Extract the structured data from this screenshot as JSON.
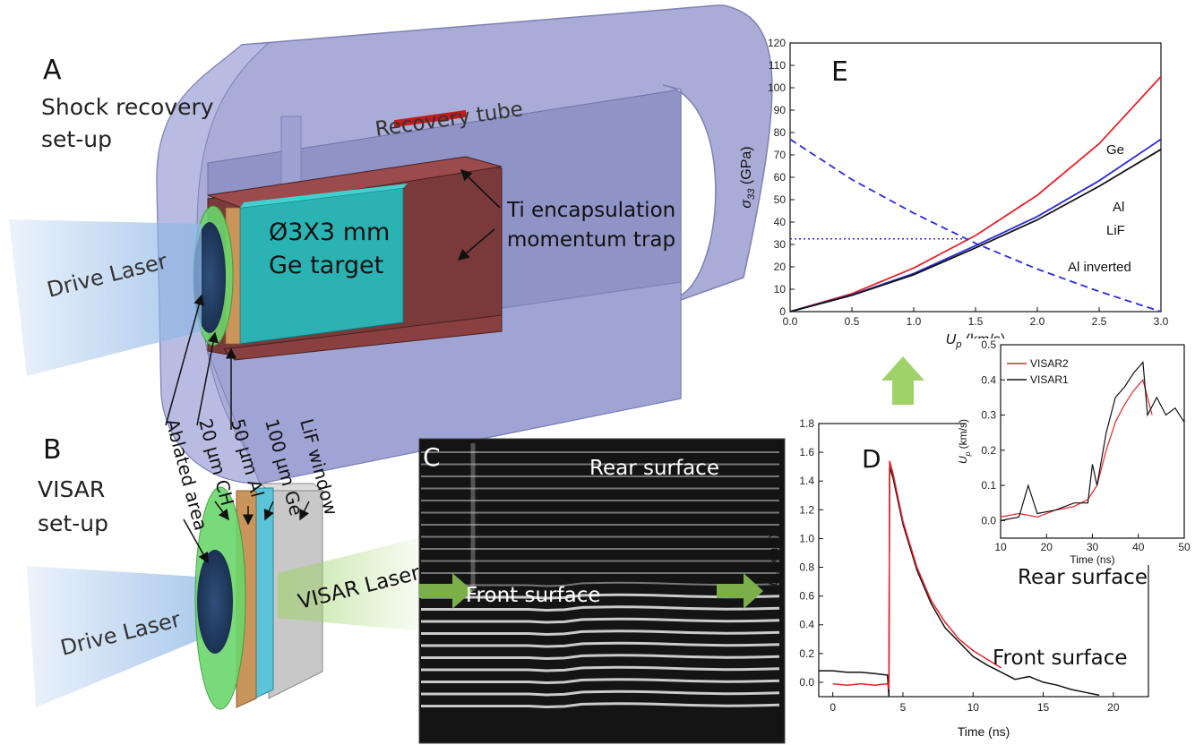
{
  "panels": {
    "A": {
      "letter": "A",
      "title_line1": "Shock recovery",
      "title_line2": "set-up",
      "recovery_tube": "Recovery tube",
      "encapsulation_line1": "Ti encapsulation",
      "encapsulation_line2": "momentum trap",
      "target_line1": "Ø3X3 mm",
      "target_line2": "Ge target",
      "drive_laser": "Drive Laser"
    },
    "B": {
      "letter": "B",
      "title_line1": "VISAR",
      "title_line2": "set-up",
      "drive_laser": "Drive Laser",
      "visar_laser": "VISAR Laser",
      "layers": [
        "Ablated area",
        "20 µm CH",
        "50 µm Al",
        "100 µm Ge",
        "LiF window"
      ]
    },
    "C": {
      "letter": "C",
      "rear_surface": "Rear surface",
      "front_surface": "Front surface"
    },
    "D": {
      "letter": "D",
      "rear_surface": "Rear surface",
      "front_surface": "Front surface"
    },
    "E": {
      "letter": "E"
    }
  },
  "colors": {
    "tube": "#a9acd6",
    "tube_dark": "#8b8fc2",
    "copper": "#7a3a3a",
    "ge_target": "#2bb3b3",
    "laser_blue": "#8fb7e6",
    "laser_green": "#9fd36a",
    "ch_green": "#6bd66b",
    "al_tan": "#c9955a",
    "lif_gray": "#c8c8c8",
    "red": "#e8232a",
    "blue": "#2a2ae0",
    "black": "#111111"
  },
  "chart_data": [
    {
      "id": "E",
      "type": "line",
      "xlabel": "U_p (km/s)",
      "xlabel_main": "U",
      "xlabel_sub": "p",
      "xlabel_unit": " (km/s)",
      "ylabel": "σ33 (GPa)",
      "ylabel_main": "σ",
      "ylabel_sub": "33",
      "ylabel_unit": " (GPa)",
      "xlim": [
        0,
        3.0
      ],
      "ylim": [
        0,
        120
      ],
      "xticks": [
        "0.0",
        "0.5",
        "1.0",
        "1.5",
        "2.0",
        "2.5",
        "3.0"
      ],
      "yticks": [
        "0",
        "10",
        "20",
        "30",
        "40",
        "50",
        "60",
        "70",
        "80",
        "90",
        "100",
        "110",
        "120"
      ],
      "series": [
        {
          "name": "Ge",
          "color": "#e8232a",
          "style": "solid",
          "x": [
            0,
            0.5,
            1.0,
            1.5,
            2.0,
            2.5,
            3.0
          ],
          "y": [
            0,
            8,
            19.5,
            34,
            52,
            75,
            105
          ]
        },
        {
          "name": "Al",
          "color": "#2a2ae0",
          "style": "solid",
          "x": [
            0,
            0.5,
            1.0,
            1.5,
            2.0,
            2.5,
            3.0
          ],
          "y": [
            0,
            7.5,
            17,
            29.5,
            42.5,
            58.5,
            77
          ]
        },
        {
          "name": "LiF",
          "color": "#111111",
          "style": "solid",
          "x": [
            0,
            0.5,
            1.0,
            1.5,
            2.0,
            2.5,
            3.0
          ],
          "y": [
            0,
            7.3,
            16.5,
            28.5,
            41,
            56,
            72.5
          ]
        },
        {
          "name": "Al inverted",
          "color": "#2a2ae0",
          "style": "dashed",
          "x": [
            0,
            0.5,
            1.0,
            1.5,
            2.0,
            2.5,
            3.0
          ],
          "y": [
            77,
            59,
            44,
            30.5,
            19,
            9,
            0
          ]
        }
      ],
      "reference_line": {
        "y": 32.5,
        "x_end": 1.4
      }
    },
    {
      "id": "D",
      "type": "line",
      "xlabel": "Time (ns)",
      "ylabel": "Up (km/s)",
      "ylabel_main": "U",
      "ylabel_sub": "p",
      "ylabel_unit": " (km/s)",
      "xlim": [
        -1,
        22.5
      ],
      "ylim": [
        -0.1,
        1.8
      ],
      "xticks": [
        "0",
        "5",
        "10",
        "15",
        "20"
      ],
      "yticks": [
        "0.0",
        "0.2",
        "0.4",
        "0.6",
        "0.8",
        "1.0",
        "1.2",
        "1.4",
        "1.6",
        "1.8"
      ],
      "series": [
        {
          "name": "black",
          "color": "#111111",
          "x": [
            -1,
            0,
            1,
            2,
            3,
            3.9,
            4.0,
            4.05,
            4.3,
            5,
            6,
            7,
            8,
            9,
            10,
            11,
            12,
            13,
            14,
            15,
            16,
            17,
            18,
            19
          ],
          "y": [
            0.08,
            0.08,
            0.07,
            0.07,
            0.06,
            0.05,
            -0.1,
            1.5,
            1.42,
            1.1,
            0.78,
            0.55,
            0.38,
            0.28,
            0.18,
            0.12,
            0.07,
            0.02,
            0.04,
            0.0,
            -0.02,
            -0.05,
            -0.07,
            -0.09
          ]
        },
        {
          "name": "red",
          "color": "#e8232a",
          "x": [
            0,
            1,
            2,
            3,
            3.9,
            4.0,
            4.05,
            4.3,
            5,
            6,
            7,
            8,
            9,
            10,
            11,
            12
          ],
          "y": [
            -0.01,
            -0.02,
            -0.01,
            -0.02,
            -0.01,
            -0.05,
            1.54,
            1.45,
            1.12,
            0.8,
            0.57,
            0.42,
            0.3,
            0.22,
            0.16,
            0.1
          ]
        }
      ]
    },
    {
      "id": "D-inset",
      "type": "line",
      "xlabel": "Time (ns)",
      "ylabel": "Up (km/s)",
      "ylabel_main": "U",
      "ylabel_sub": "p",
      "ylabel_unit": " (km/s)",
      "xlim": [
        10,
        50
      ],
      "ylim": [
        -0.05,
        0.5
      ],
      "xticks": [
        "10",
        "20",
        "30",
        "40",
        "50"
      ],
      "yticks": [
        "0.0",
        "0.1",
        "0.2",
        "0.3",
        "0.4",
        "0.5"
      ],
      "legend": "top-left",
      "series": [
        {
          "name": "VISAR2",
          "color": "#e8232a",
          "x": [
            10,
            14,
            18,
            22,
            26,
            29,
            31,
            33,
            35,
            37,
            39,
            41,
            43
          ],
          "y": [
            0.01,
            0.02,
            0.01,
            0.03,
            0.04,
            0.06,
            0.1,
            0.2,
            0.28,
            0.33,
            0.37,
            0.4,
            0.3
          ]
        },
        {
          "name": "VISAR1",
          "color": "#111111",
          "x": [
            10,
            14,
            16,
            18,
            22,
            26,
            29,
            30,
            31,
            33,
            35,
            37,
            39,
            41,
            42,
            44,
            46,
            48,
            50
          ],
          "y": [
            0.0,
            0.01,
            0.1,
            0.02,
            0.03,
            0.05,
            0.05,
            0.16,
            0.1,
            0.25,
            0.35,
            0.38,
            0.42,
            0.45,
            0.3,
            0.35,
            0.3,
            0.32,
            0.28
          ]
        }
      ]
    }
  ]
}
